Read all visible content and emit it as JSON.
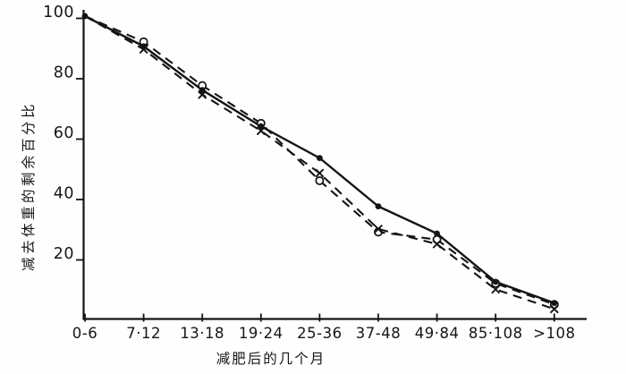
{
  "chart_data": {
    "type": "line",
    "title": "",
    "xlabel": "减肥后的几个月",
    "ylabel": "减去体重的剩余百分比",
    "categories": [
      "0-6",
      "7·12",
      "13·18",
      "19·24",
      "25-36",
      "37-48",
      "49·84",
      "85·108",
      ">108"
    ],
    "yticks": [
      20,
      40,
      60,
      80,
      100
    ],
    "ylim": [
      0,
      105
    ],
    "grid": false,
    "legend": "none",
    "colors": {
      "ink": "#141414",
      "background": "#ffffff"
    },
    "series": [
      {
        "name": "solid-dot-series",
        "line": "solid",
        "marker": "dot",
        "marker_from": 0,
        "values": [
          100,
          90,
          75.5,
          63.5,
          53,
          37,
          28,
          12,
          5
        ]
      },
      {
        "name": "dashed-circle-series",
        "line": "dashed",
        "marker": "circle",
        "marker_from": 1,
        "values": [
          100,
          91.5,
          77,
          64.5,
          45.5,
          28.5,
          26,
          11.5,
          4.5
        ]
      },
      {
        "name": "dashed-x-series",
        "line": "dashed",
        "marker": "x",
        "marker_from": 1,
        "values": [
          100,
          89,
          74,
          62,
          48,
          29.5,
          24.5,
          9.5,
          3
        ]
      }
    ]
  }
}
